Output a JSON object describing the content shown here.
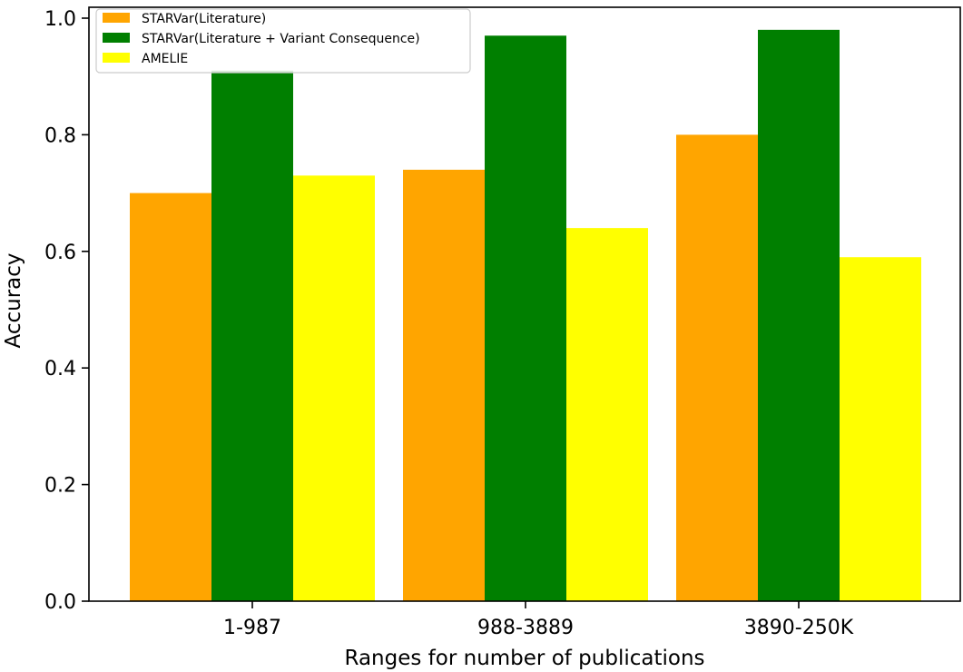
{
  "chart_data": {
    "type": "bar",
    "title": "",
    "xlabel": "Ranges for number of publications",
    "ylabel": "Accuracy",
    "categories": [
      "1-987",
      "988-3889",
      "3890-250K"
    ],
    "ylim": [
      0,
      1.0
    ],
    "yticks": [
      0.0,
      0.2,
      0.4,
      0.6,
      0.8,
      1.0
    ],
    "ytick_labels": [
      "0.0",
      "0.2",
      "0.4",
      "0.6",
      "0.8",
      "1.0"
    ],
    "grid": false,
    "legend_position": "top-left",
    "series": [
      {
        "name": "STARVar(Literature)",
        "color": "#FFA500",
        "values": [
          0.7,
          0.74,
          0.8
        ]
      },
      {
        "name": "STARVar(Literature + Variant Consequence)",
        "color": "#007F00",
        "values": [
          0.91,
          0.97,
          0.98
        ]
      },
      {
        "name": "AMELIE",
        "color": "#FFFF00",
        "values": [
          0.73,
          0.64,
          0.59
        ]
      }
    ]
  }
}
